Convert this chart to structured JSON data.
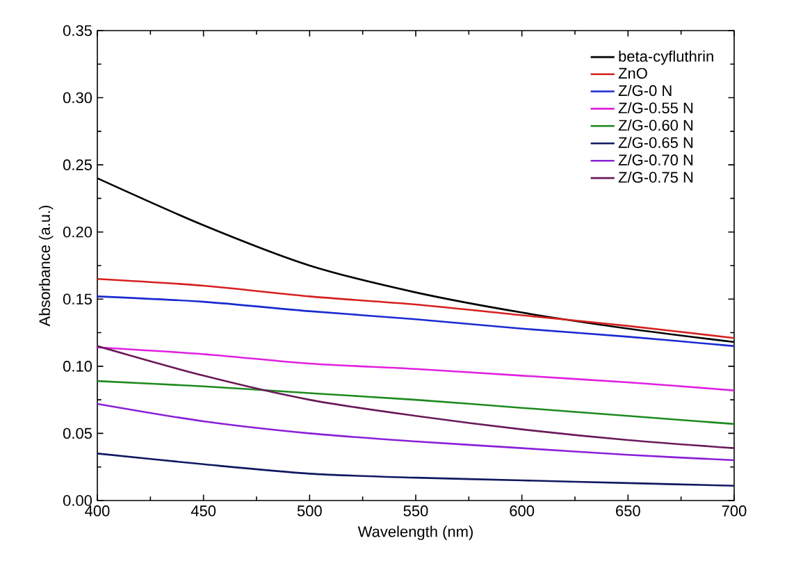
{
  "chart_data": {
    "type": "line",
    "xlabel": "Wavelength (nm)",
    "ylabel": "Absorbance (a.u.)",
    "x": [
      400,
      450,
      500,
      550,
      600,
      650,
      700
    ],
    "xlim": [
      400,
      700
    ],
    "xticks": [
      400,
      450,
      500,
      550,
      600,
      650,
      700
    ],
    "ylim": [
      0,
      0.35
    ],
    "yticks": [
      {
        "value": 0,
        "label": "0.00"
      },
      {
        "value": 0.05,
        "label": "0.05"
      },
      {
        "value": 0.1,
        "label": "0.10"
      },
      {
        "value": 0.15,
        "label": "0.15"
      },
      {
        "value": 0.2,
        "label": "0.20"
      },
      {
        "value": 0.25,
        "label": "0.25"
      },
      {
        "value": 0.3,
        "label": "0.30"
      },
      {
        "value": 0.35,
        "label": "0.35"
      }
    ],
    "grid": false,
    "legend": "top right",
    "marker": "none",
    "line_style": "solid",
    "series": [
      {
        "name": "beta-cyfluthrin",
        "color": "#000000",
        "values": [
          0.24,
          0.205,
          0.175,
          0.155,
          0.14,
          0.128,
          0.118
        ]
      },
      {
        "name": "ZnO",
        "color": "#d62020",
        "values": [
          0.165,
          0.16,
          0.152,
          0.146,
          0.138,
          0.13,
          0.121
        ]
      },
      {
        "name": "Z/G-0 N",
        "color": "#1a2ad0",
        "values": [
          0.152,
          0.148,
          0.141,
          0.135,
          0.128,
          0.122,
          0.115
        ]
      },
      {
        "name": "Z/G-0.55 N",
        "color": "#e020e0",
        "values": [
          0.114,
          0.109,
          0.102,
          0.098,
          0.093,
          0.088,
          0.082
        ]
      },
      {
        "name": "Z/G-0.60 N",
        "color": "#1e8a1e",
        "values": [
          0.089,
          0.085,
          0.08,
          0.075,
          0.069,
          0.063,
          0.057
        ]
      },
      {
        "name": "Z/G-0.65 N",
        "color": "#101860",
        "values": [
          0.035,
          0.027,
          0.02,
          0.017,
          0.015,
          0.013,
          0.011
        ]
      },
      {
        "name": "Z/G-0.70 N",
        "color": "#8a20d8",
        "values": [
          0.072,
          0.059,
          0.05,
          0.044,
          0.039,
          0.034,
          0.03
        ]
      },
      {
        "name": "Z/G-0.75 N",
        "color": "#6a1a5a",
        "values": [
          0.115,
          0.093,
          0.075,
          0.063,
          0.053,
          0.045,
          0.039
        ]
      }
    ]
  }
}
